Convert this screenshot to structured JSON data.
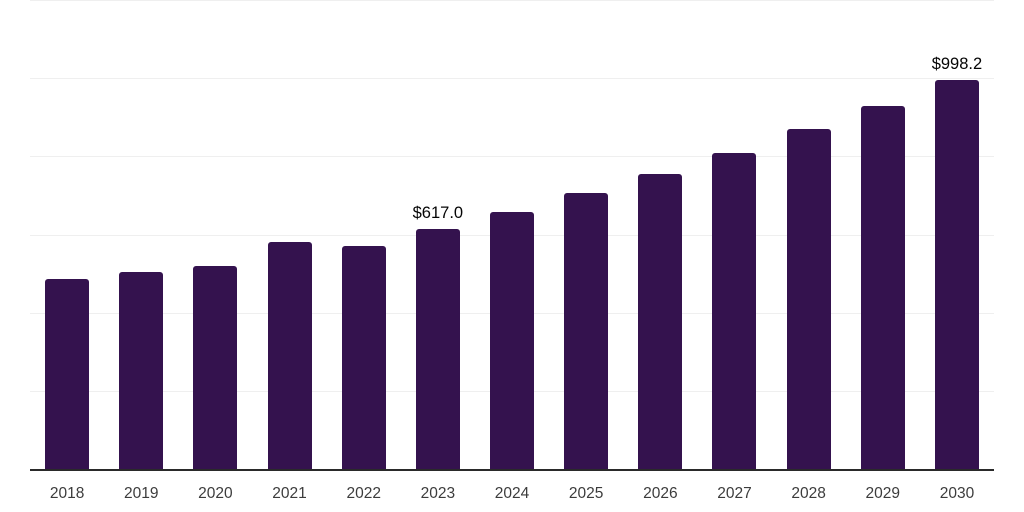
{
  "chart_data": {
    "type": "bar",
    "title": "",
    "xlabel": "",
    "ylabel": "",
    "categories": [
      "2018",
      "2019",
      "2020",
      "2021",
      "2022",
      "2023",
      "2024",
      "2025",
      "2026",
      "2027",
      "2028",
      "2029",
      "2030"
    ],
    "values": [
      489,
      507,
      522,
      584,
      572,
      617.0,
      661,
      710,
      758,
      810,
      872,
      931,
      998.2
    ],
    "annotations": [
      {
        "category": "2023",
        "text": "$617.0"
      },
      {
        "category": "2030",
        "text": "$998.2"
      }
    ],
    "ylim": [
      0,
      1200
    ],
    "gridline_step": 200,
    "grid": "horizontal",
    "legend_position": "none",
    "bar_color": "#34124e",
    "axis_color": "#2a2a2a",
    "gridline_color": "#efefef",
    "tick_label_color": "#3c3c3c",
    "annotation_color": "#050505",
    "background_color": "#ffffff"
  }
}
